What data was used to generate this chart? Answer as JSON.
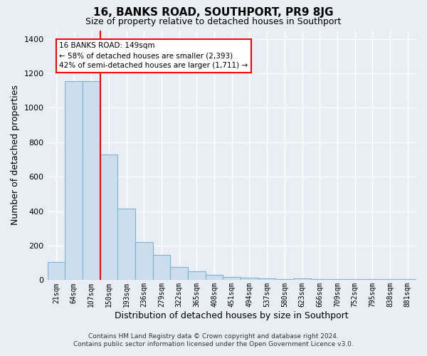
{
  "title": "16, BANKS ROAD, SOUTHPORT, PR9 8JG",
  "subtitle": "Size of property relative to detached houses in Southport",
  "xlabel": "Distribution of detached houses by size in Southport",
  "ylabel": "Number of detached properties",
  "bar_labels": [
    "21sqm",
    "64sqm",
    "107sqm",
    "150sqm",
    "193sqm",
    "236sqm",
    "279sqm",
    "322sqm",
    "365sqm",
    "408sqm",
    "451sqm",
    "494sqm",
    "537sqm",
    "580sqm",
    "623sqm",
    "666sqm",
    "709sqm",
    "752sqm",
    "795sqm",
    "838sqm",
    "881sqm"
  ],
  "bar_values": [
    105,
    1155,
    1155,
    730,
    415,
    220,
    145,
    75,
    50,
    30,
    20,
    15,
    10,
    5,
    10,
    5,
    5,
    5,
    5,
    5,
    5
  ],
  "bar_color": "#ccdded",
  "bar_edge_color": "#7fb3d3",
  "red_line_x": 2.5,
  "ylim_min": 0,
  "ylim_max": 1450,
  "yticks": [
    0,
    200,
    400,
    600,
    800,
    1000,
    1200,
    1400
  ],
  "ann_line1": "16 BANKS ROAD: 149sqm",
  "ann_line2": "← 58% of detached houses are smaller (2,393)",
  "ann_line3": "42% of semi-detached houses are larger (1,711) →",
  "footer_line1": "Contains HM Land Registry data © Crown copyright and database right 2024.",
  "footer_line2": "Contains public sector information licensed under the Open Government Licence v3.0.",
  "bg_color": "#e8eef4",
  "grid_color": "#d0d8e0"
}
